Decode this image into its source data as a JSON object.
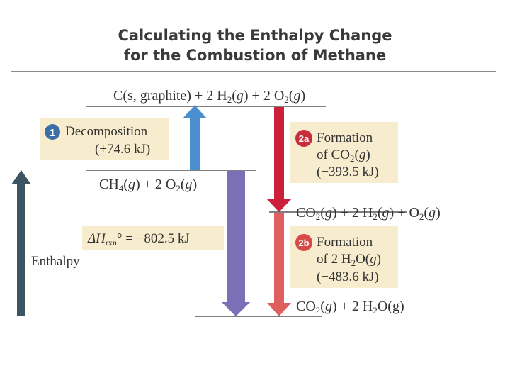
{
  "title": {
    "line1": "Calculating the Enthalpy Change",
    "line2": "for the Combustion of Methane"
  },
  "colors": {
    "enthalpy_axis": "#3d5463",
    "decomposition_arrow": "#4a8fd0",
    "overall_arrow": "#7b6fb5",
    "formation_co2_arrow": "#cc1f3a",
    "formation_h2o_arrow": "#df5f5f",
    "label_box": "#f7eccd",
    "badge_1": "#3c6fa8",
    "badge_2a": "#c72d3b",
    "badge_2b": "#d84a4a"
  },
  "enthalpy_label": "Enthalpy",
  "levels": {
    "top": "C(s, graphite) + 2 H2(g) + 2 O2(g)",
    "methane": "CH4(g) + 2 O2(g)",
    "intermediate": "CO2(g) + 2 H2(g) + O2(g)",
    "products": "CO2(g) + 2 H2O(g)"
  },
  "steps": {
    "decomposition": {
      "badge": "1",
      "label": "Decomposition",
      "value": "(+74.6 kJ)"
    },
    "formation_co2": {
      "badge": "2a",
      "label": "Formation",
      "line2": "of CO2(g)",
      "value": "(−393.5 kJ)"
    },
    "formation_h2o": {
      "badge": "2b",
      "label": "Formation",
      "line2": "of 2 H2O(g)",
      "value": "(−483.6 kJ)"
    }
  },
  "delta_h": {
    "symbol": "ΔH",
    "subscript": "rxn",
    "value": "° = −802.5 kJ"
  }
}
